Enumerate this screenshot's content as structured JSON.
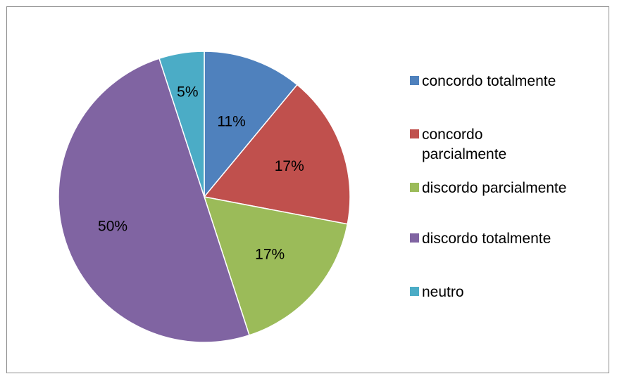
{
  "chart_data": {
    "type": "pie",
    "title": "",
    "slices": [
      {
        "label": "concordo totalmente",
        "value": 11,
        "display": "11%",
        "color": "#4f81bd"
      },
      {
        "label": "concordo parcialmente",
        "value": 17,
        "display": "17%",
        "color": "#c0504d"
      },
      {
        "label": "discordo parcialmente",
        "value": 17,
        "display": "17%",
        "color": "#9bbb59"
      },
      {
        "label": "discordo totalmente",
        "value": 50,
        "display": "50%",
        "color": "#8064a2"
      },
      {
        "label": "neutro",
        "value": 5,
        "display": "5%",
        "color": "#4bacc6"
      }
    ],
    "legend_position": "right",
    "start_angle": "12 o'clock",
    "direction": "clockwise"
  }
}
